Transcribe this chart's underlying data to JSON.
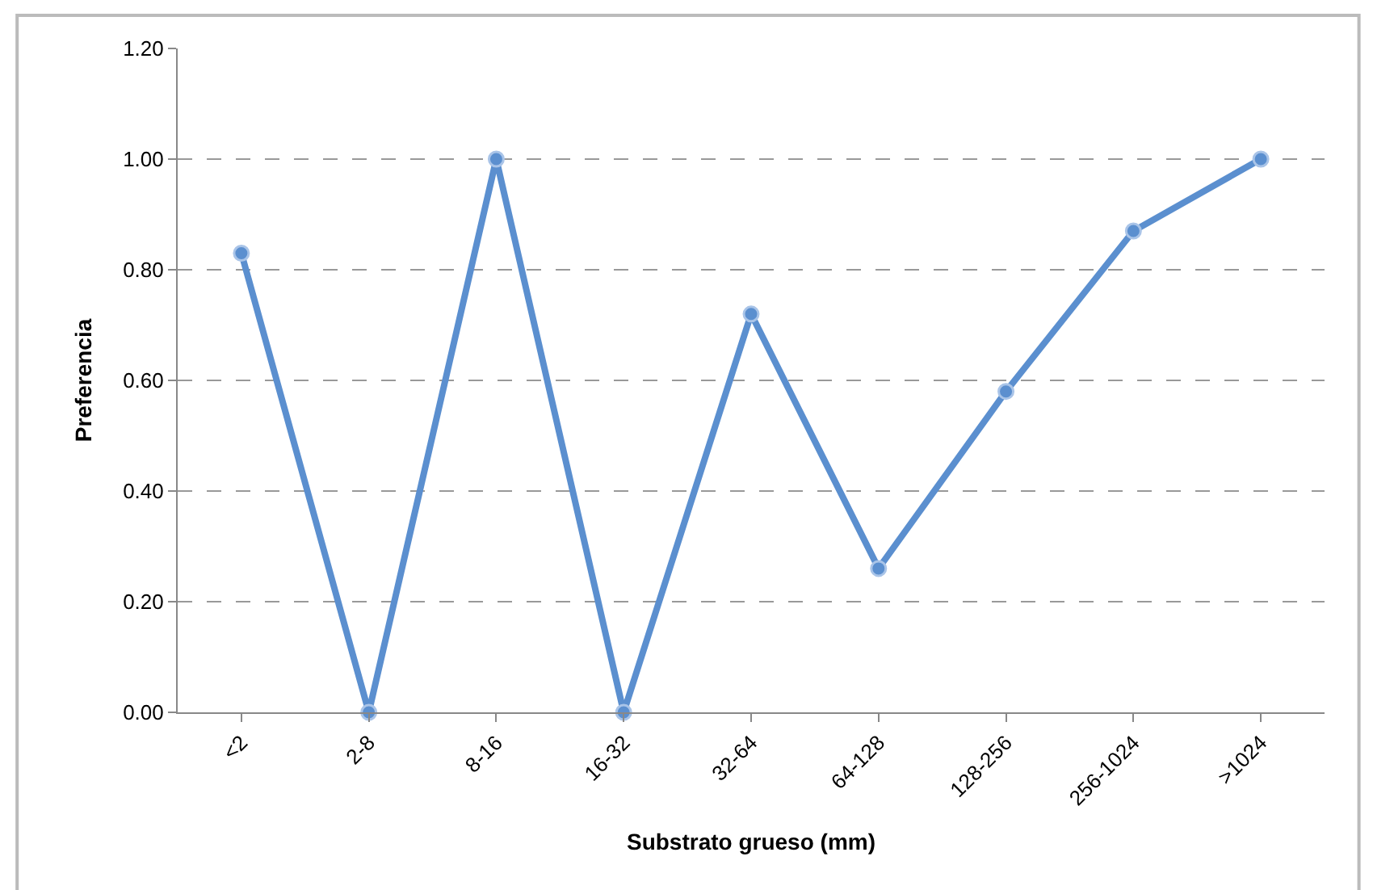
{
  "chart_data": {
    "type": "line",
    "xlabel": "Substrato grueso (mm)",
    "ylabel": "Preferencia",
    "categories": [
      "<2",
      "2-8",
      "8-16",
      "16-32",
      "32-64",
      "64-128",
      "128-256",
      "256-1024",
      ">1024"
    ],
    "series": [
      {
        "color": "#5b8fcf",
        "values": [
          0.83,
          0.0,
          1.0,
          0.0,
          0.72,
          0.26,
          0.58,
          0.87,
          1.0
        ]
      }
    ],
    "ylim": [
      0,
      1.2
    ],
    "yticks": [
      {
        "value": 0,
        "label": "0.00"
      },
      {
        "value": 0.2,
        "label": "0.20"
      },
      {
        "value": 0.4,
        "label": "0.40"
      },
      {
        "value": 0.6,
        "label": "0.60"
      },
      {
        "value": 0.8,
        "label": "0.80"
      },
      {
        "value": 1.0,
        "label": "1.00"
      },
      {
        "value": 1.2,
        "label": "1.20"
      }
    ],
    "grid": "y",
    "legend": false,
    "marker": "circle",
    "line_style": "solid"
  }
}
